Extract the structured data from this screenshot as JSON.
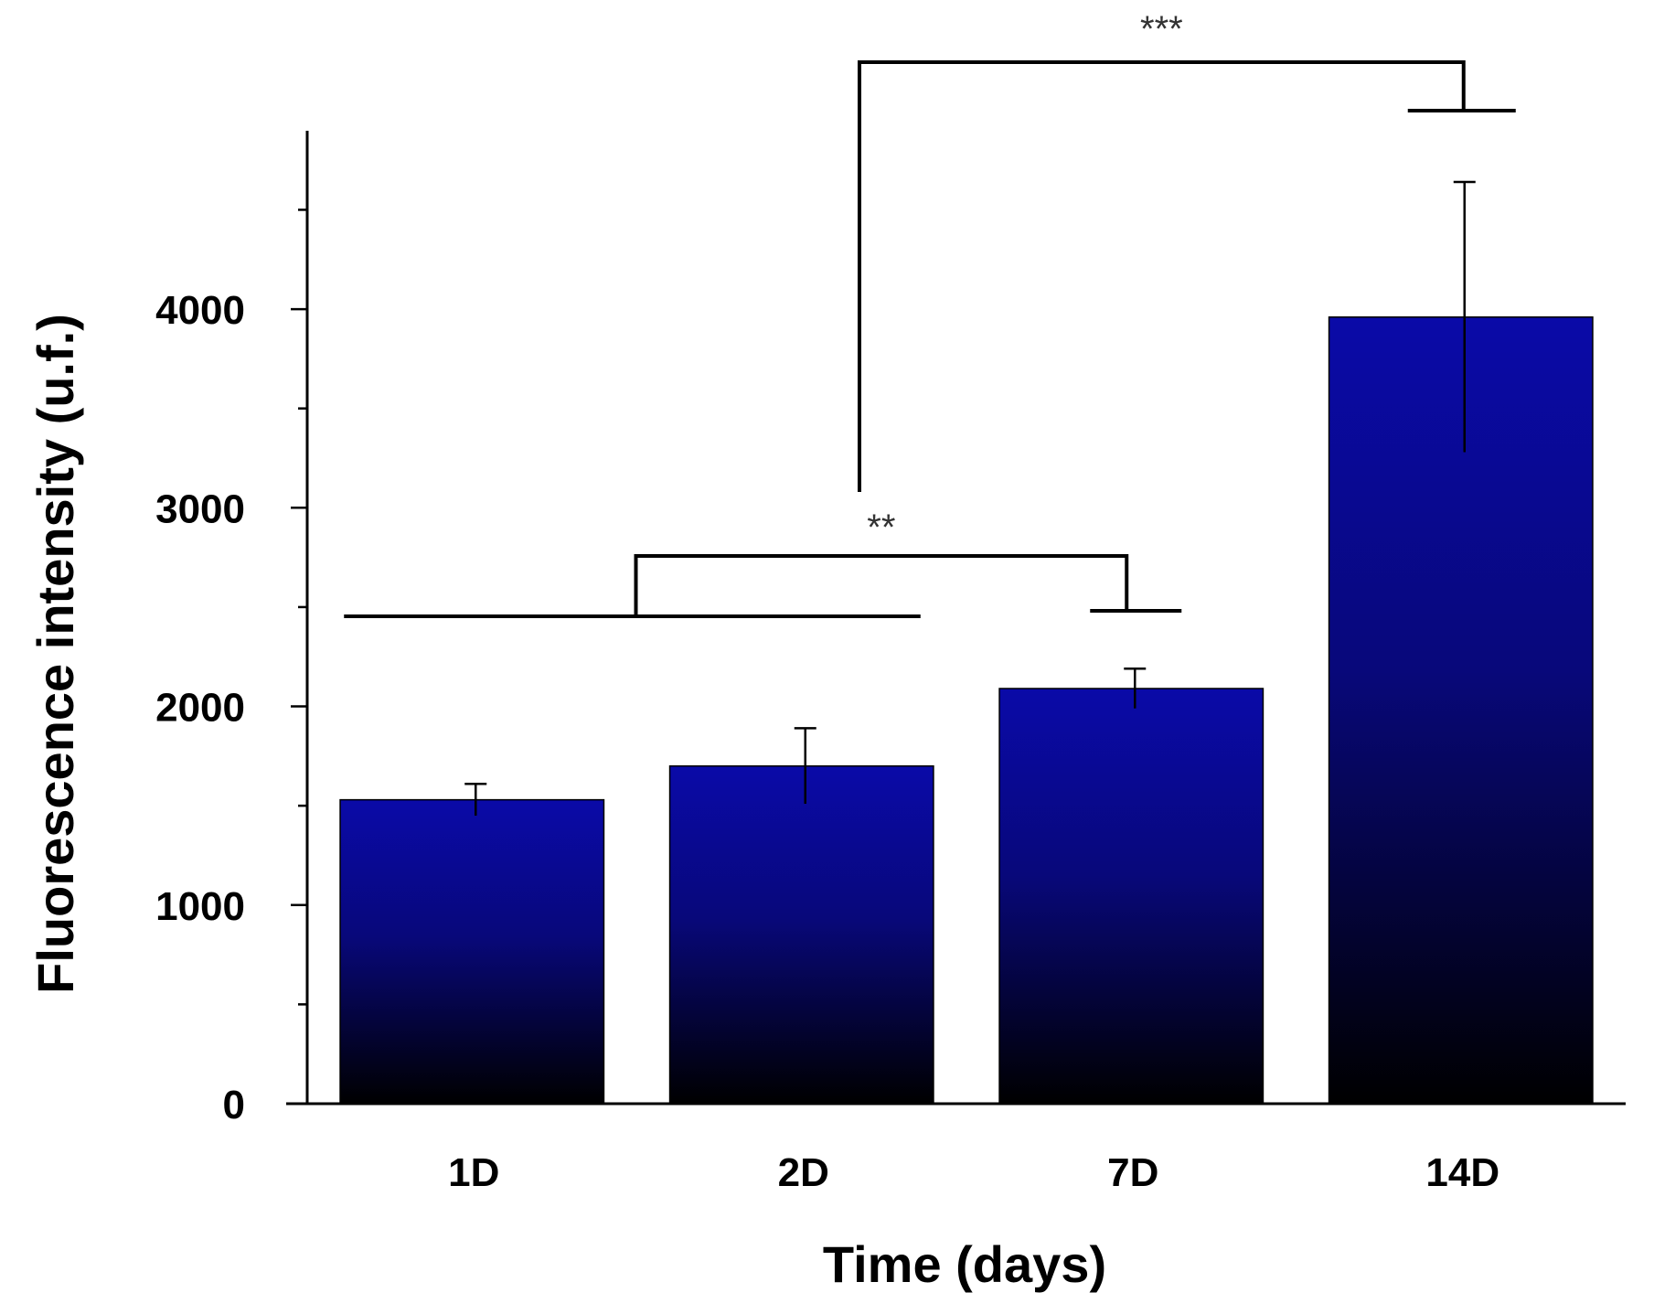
{
  "chart_data": {
    "type": "bar",
    "title": "",
    "xlabel": "Time (days)",
    "ylabel": "Fluorescence intensity (u.f.)",
    "categories": [
      "1D",
      "2D",
      "7D",
      "14D"
    ],
    "values": [
      1530,
      1700,
      2090,
      3960
    ],
    "errors": [
      80,
      190,
      100,
      680
    ],
    "ylim": [
      0,
      4700
    ],
    "yticks": [
      0,
      1000,
      2000,
      3000,
      4000
    ],
    "ytick_labels": [
      "0",
      "1000",
      "2000",
      "3000",
      "4000"
    ],
    "minor_tick_step": 500,
    "grid": false,
    "bar_color_top": "#0a0aa8",
    "bar_color_bottom": "#000000",
    "significance": [
      {
        "label": "**",
        "left_group": [
          "1D",
          "2D"
        ],
        "right_group": [
          "7D"
        ]
      },
      {
        "label": "***",
        "left_group": [
          "1D",
          "2D",
          "7D"
        ],
        "right_group": [
          "14D"
        ]
      }
    ]
  }
}
